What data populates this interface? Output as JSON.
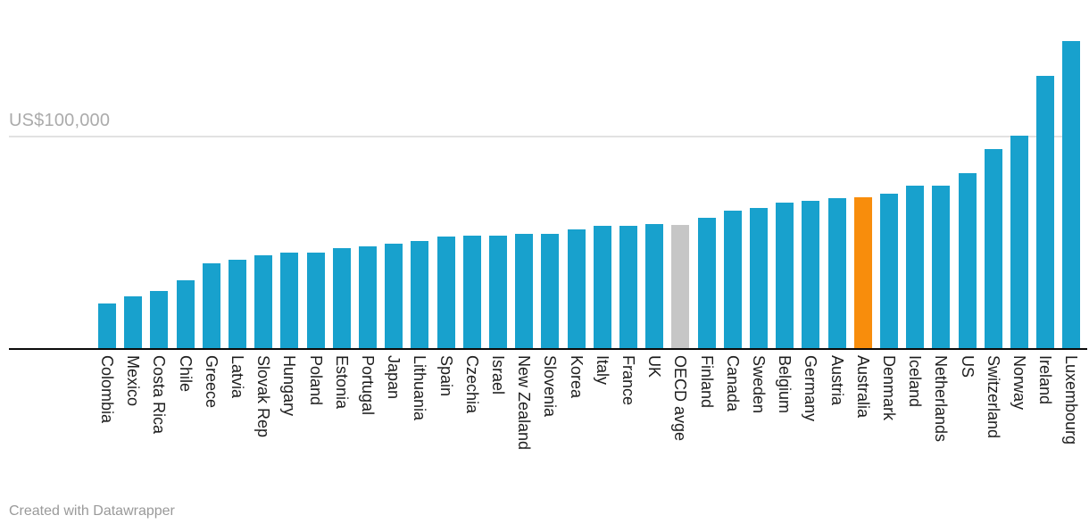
{
  "chart": {
    "footer_credit": "Created with Datawrapper"
  },
  "chart_data": {
    "type": "bar",
    "title": "",
    "subtitle": "",
    "orientation": "vertical-columns",
    "categories": [
      "Colombia",
      "Mexico",
      "Costa Rica",
      "Chile",
      "Greece",
      "Latvia",
      "Slovak Rep",
      "Hungary",
      "Poland",
      "Estonia",
      "Portugal",
      "Japan",
      "Lithuania",
      "Spain",
      "Czechia",
      "Israel",
      "New Zealand",
      "Slovenia",
      "Korea",
      "Italy",
      "France",
      "UK",
      "OECD avge",
      "Finland",
      "Canada",
      "Sweden",
      "Belgium",
      "Germany",
      "Austria",
      "Australia",
      "Denmark",
      "Iceland",
      "Netherlands",
      "US",
      "Switzerland",
      "Norway",
      "Ireland",
      "Luxembourg"
    ],
    "values": [
      21000,
      24200,
      26700,
      31900,
      40100,
      41700,
      43500,
      44800,
      44800,
      46900,
      47900,
      49000,
      50500,
      52400,
      52800,
      52900,
      53600,
      53700,
      55800,
      57400,
      57500,
      58400,
      57900,
      61500,
      64900,
      65900,
      68400,
      69400,
      70500,
      71100,
      72600,
      76500,
      76500,
      82400,
      93700,
      100200,
      128000,
      144600
    ],
    "bar_roles": [
      "default",
      "default",
      "default",
      "default",
      "default",
      "default",
      "default",
      "default",
      "default",
      "default",
      "default",
      "default",
      "default",
      "default",
      "default",
      "default",
      "default",
      "default",
      "default",
      "default",
      "default",
      "default",
      "reference",
      "default",
      "default",
      "default",
      "default",
      "default",
      "default",
      "highlight",
      "default",
      "default",
      "default",
      "default",
      "default",
      "default",
      "default",
      "default"
    ],
    "y_axis": {
      "unit": "US$",
      "ymin": 0,
      "ymax": 150000,
      "gridline_value": 100000,
      "gridline_label": "US$100,000"
    },
    "x_axis": {
      "label_rotation_deg": 90
    },
    "legend": {
      "visible": false
    },
    "grid": "single horizontal gridline at US$100,000, drawn behind bars",
    "colors": {
      "default_bar": "#18A1CD",
      "highlight_bar": "#F88D0C",
      "reference_bar": "#C6C6C6",
      "axis_line": "#0B0B0B",
      "gridline": "#E2E2E2",
      "gridline_label": "#ABABAB",
      "tick_label": "#1D1D1D",
      "credit_text": "#9A9A9A"
    }
  }
}
